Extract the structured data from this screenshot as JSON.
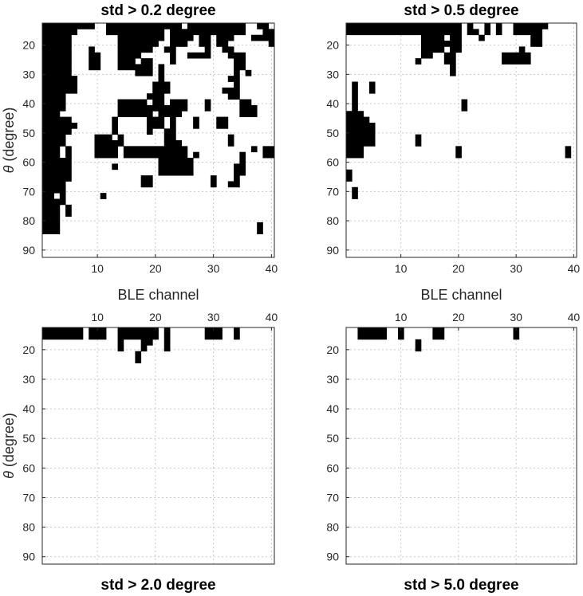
{
  "chart_data": [
    {
      "type": "heatmap",
      "title": "std > 0.2 degree",
      "xlabel": "BLE channel",
      "ylabel": "θ (degree)",
      "xticks": [
        "10",
        "20",
        "30",
        "40"
      ],
      "yticks": [
        "20",
        "30",
        "40",
        "50",
        "60",
        "70",
        "80",
        "90"
      ],
      "xlim": [
        0.5,
        40.5
      ],
      "ylim": [
        12.5,
        92.5
      ],
      "title_position": "top",
      "xtick_position": "bottom",
      "grid": true,
      "colors": {
        "flagged": "#000000",
        "unflagged": "#ffffff"
      },
      "cells": [
        [
          1,
          13,
          9
        ],
        [
          12,
          13,
          24
        ],
        [
          26,
          13,
          35
        ],
        [
          38,
          13,
          39
        ],
        [
          1,
          15,
          6
        ],
        [
          12,
          15,
          21
        ],
        [
          23,
          15,
          35
        ],
        [
          39,
          15,
          40
        ],
        [
          1,
          17,
          5
        ],
        [
          14,
          17,
          21
        ],
        [
          23,
          17,
          26
        ],
        [
          28,
          17,
          29
        ],
        [
          31,
          17,
          33
        ],
        [
          37,
          17,
          40
        ],
        [
          1,
          19,
          5
        ],
        [
          14,
          19,
          20
        ],
        [
          23,
          19,
          25
        ],
        [
          28,
          19,
          29
        ],
        [
          31,
          19,
          32
        ],
        [
          40,
          19,
          40
        ],
        [
          1,
          21,
          5
        ],
        [
          9,
          21,
          9
        ],
        [
          14,
          21,
          16
        ],
        [
          17,
          21,
          19
        ],
        [
          22,
          21,
          23
        ],
        [
          29,
          21,
          29
        ],
        [
          32,
          21,
          33
        ],
        [
          1,
          23,
          5
        ],
        [
          9,
          23,
          10
        ],
        [
          14,
          23,
          17
        ],
        [
          23,
          23,
          23
        ],
        [
          26,
          23,
          28
        ],
        [
          29,
          23,
          29
        ],
        [
          33,
          23,
          35
        ],
        [
          1,
          25,
          5
        ],
        [
          9,
          25,
          10
        ],
        [
          14,
          25,
          16
        ],
        [
          18,
          25,
          19
        ],
        [
          23,
          25,
          23
        ],
        [
          34,
          25,
          35
        ],
        [
          1,
          27,
          5
        ],
        [
          9,
          27,
          10
        ],
        [
          14,
          27,
          17
        ],
        [
          18,
          27,
          19
        ],
        [
          21,
          27,
          21
        ],
        [
          34,
          27,
          35
        ],
        [
          1,
          29,
          5
        ],
        [
          17,
          29,
          19
        ],
        [
          21,
          29,
          21
        ],
        [
          34,
          29,
          34
        ],
        [
          36,
          29,
          36
        ],
        [
          1,
          31,
          5
        ],
        [
          6,
          31,
          6
        ],
        [
          21,
          31,
          21
        ],
        [
          33,
          31,
          34
        ],
        [
          1,
          33,
          5
        ],
        [
          6,
          33,
          6
        ],
        [
          20,
          33,
          22
        ],
        [
          34,
          33,
          34
        ],
        [
          1,
          35,
          5
        ],
        [
          6,
          35,
          6
        ],
        [
          20,
          35,
          22
        ],
        [
          32,
          35,
          34
        ],
        [
          1,
          37,
          4
        ],
        [
          19,
          37,
          21
        ],
        [
          33,
          37,
          34
        ],
        [
          1,
          39,
          4
        ],
        [
          14,
          39,
          18
        ],
        [
          20,
          39,
          21
        ],
        [
          23,
          39,
          25
        ],
        [
          29,
          39,
          29
        ],
        [
          35,
          39,
          36
        ],
        [
          1,
          41,
          4
        ],
        [
          14,
          41,
          19
        ],
        [
          20,
          41,
          25
        ],
        [
          29,
          41,
          29
        ],
        [
          35,
          41,
          37
        ],
        [
          1,
          43,
          3
        ],
        [
          14,
          43,
          19
        ],
        [
          21,
          43,
          24
        ],
        [
          35,
          43,
          37
        ],
        [
          1,
          45,
          5
        ],
        [
          13,
          45,
          13
        ],
        [
          19,
          45,
          21
        ],
        [
          23,
          45,
          23
        ],
        [
          27,
          45,
          27
        ],
        [
          31,
          45,
          32
        ],
        [
          1,
          47,
          6
        ],
        [
          13,
          47,
          13
        ],
        [
          19,
          47,
          21
        ],
        [
          23,
          47,
          23
        ],
        [
          27,
          47,
          27
        ],
        [
          31,
          47,
          32
        ],
        [
          1,
          49,
          5
        ],
        [
          13,
          49,
          13
        ],
        [
          19,
          49,
          19
        ],
        [
          22,
          49,
          23
        ],
        [
          1,
          51,
          4
        ],
        [
          10,
          51,
          10
        ],
        [
          11,
          51,
          12
        ],
        [
          14,
          51,
          14
        ],
        [
          22,
          51,
          23
        ],
        [
          33,
          51,
          33
        ],
        [
          1,
          53,
          4
        ],
        [
          10,
          53,
          13
        ],
        [
          14,
          53,
          14
        ],
        [
          22,
          53,
          24
        ],
        [
          33,
          53,
          33
        ],
        [
          1,
          55,
          3
        ],
        [
          5,
          55,
          5
        ],
        [
          10,
          55,
          13
        ],
        [
          15,
          55,
          25
        ],
        [
          37,
          55,
          37
        ],
        [
          39,
          55,
          40
        ],
        [
          1,
          57,
          3
        ],
        [
          5,
          57,
          5
        ],
        [
          10,
          57,
          13
        ],
        [
          15,
          57,
          25
        ],
        [
          27,
          57,
          27
        ],
        [
          35,
          57,
          35
        ],
        [
          39,
          57,
          40
        ],
        [
          1,
          59,
          5
        ],
        [
          21,
          59,
          26
        ],
        [
          35,
          59,
          35
        ],
        [
          1,
          61,
          5
        ],
        [
          13,
          61,
          13
        ],
        [
          21,
          61,
          26
        ],
        [
          34,
          61,
          35
        ],
        [
          1,
          63,
          5
        ],
        [
          21,
          63,
          26
        ],
        [
          34,
          63,
          35
        ],
        [
          1,
          65,
          5
        ],
        [
          18,
          65,
          19
        ],
        [
          30,
          65,
          30
        ],
        [
          34,
          65,
          34
        ],
        [
          1,
          67,
          4
        ],
        [
          18,
          67,
          19
        ],
        [
          30,
          67,
          30
        ],
        [
          33,
          67,
          34
        ],
        [
          1,
          69,
          3
        ],
        [
          4,
          69,
          4
        ],
        [
          1,
          71,
          2
        ],
        [
          4,
          71,
          4
        ],
        [
          11,
          71,
          11
        ],
        [
          1,
          73,
          3
        ],
        [
          4,
          73,
          4
        ],
        [
          1,
          75,
          3
        ],
        [
          5,
          75,
          5
        ],
        [
          1,
          77,
          3
        ],
        [
          5,
          77,
          5
        ],
        [
          1,
          79,
          3
        ],
        [
          1,
          81,
          3
        ],
        [
          38,
          81,
          38
        ],
        [
          1,
          83,
          3
        ],
        [
          38,
          83,
          38
        ]
      ]
    },
    {
      "type": "heatmap",
      "title": "std > 0.5 degree",
      "xlabel": "BLE channel",
      "ylabel": "",
      "xticks": [
        "10",
        "20",
        "30",
        "40"
      ],
      "yticks": [
        "20",
        "30",
        "40",
        "50",
        "60",
        "70",
        "80",
        "90"
      ],
      "xlim": [
        0.5,
        40.5
      ],
      "ylim": [
        12.5,
        92.5
      ],
      "title_position": "top",
      "xtick_position": "bottom",
      "grid": true,
      "colors": {
        "flagged": "#000000",
        "unflagged": "#ffffff"
      },
      "cells": [
        [
          1,
          13,
          20
        ],
        [
          22,
          13,
          22
        ],
        [
          25,
          13,
          25
        ],
        [
          27,
          13,
          27
        ],
        [
          30,
          13,
          35
        ],
        [
          1,
          15,
          20
        ],
        [
          22,
          15,
          23
        ],
        [
          25,
          15,
          25
        ],
        [
          27,
          15,
          27
        ],
        [
          30,
          15,
          34
        ],
        [
          14,
          17,
          17
        ],
        [
          19,
          17,
          20
        ],
        [
          24,
          17,
          24
        ],
        [
          33,
          17,
          34
        ],
        [
          14,
          19,
          20
        ],
        [
          33,
          19,
          34
        ],
        [
          14,
          21,
          17
        ],
        [
          19,
          21,
          20
        ],
        [
          31,
          21,
          31
        ],
        [
          14,
          23,
          15
        ],
        [
          18,
          23,
          19
        ],
        [
          28,
          23,
          30
        ],
        [
          31,
          23,
          32
        ],
        [
          13,
          25,
          13
        ],
        [
          18,
          25,
          19
        ],
        [
          28,
          25,
          30
        ],
        [
          31,
          25,
          32
        ],
        [
          19,
          27,
          19
        ],
        [
          19,
          29,
          19
        ],
        [
          2,
          33,
          2
        ],
        [
          5,
          33,
          5
        ],
        [
          2,
          35,
          2
        ],
        [
          5,
          35,
          5
        ],
        [
          2,
          37,
          2
        ],
        [
          2,
          39,
          2
        ],
        [
          21,
          39,
          21
        ],
        [
          2,
          41,
          2
        ],
        [
          21,
          41,
          21
        ],
        [
          1,
          43,
          3
        ],
        [
          1,
          45,
          3
        ],
        [
          4,
          45,
          4
        ],
        [
          1,
          47,
          3
        ],
        [
          4,
          47,
          5
        ],
        [
          1,
          49,
          5
        ],
        [
          1,
          51,
          5
        ],
        [
          13,
          51,
          13
        ],
        [
          1,
          53,
          5
        ],
        [
          13,
          53,
          13
        ],
        [
          1,
          55,
          3
        ],
        [
          20,
          55,
          20
        ],
        [
          39,
          55,
          39
        ],
        [
          1,
          57,
          3
        ],
        [
          20,
          57,
          20
        ],
        [
          39,
          57,
          39
        ],
        [
          1,
          63,
          1
        ],
        [
          1,
          65,
          1
        ],
        [
          2,
          69,
          2
        ],
        [
          2,
          71,
          2
        ]
      ]
    },
    {
      "type": "heatmap",
      "title": "std > 2.0 degree",
      "xlabel": "",
      "ylabel": "θ (degree)",
      "xticks": [
        "10",
        "20",
        "30",
        "40"
      ],
      "yticks": [
        "20",
        "30",
        "40",
        "50",
        "60",
        "70",
        "80",
        "90"
      ],
      "xlim": [
        0.5,
        40.5
      ],
      "ylim": [
        12.5,
        92.5
      ],
      "title_position": "bottom",
      "xtick_position": "top",
      "grid": true,
      "colors": {
        "flagged": "#000000",
        "unflagged": "#ffffff"
      },
      "cells": [
        [
          1,
          13,
          7
        ],
        [
          9,
          13,
          11
        ],
        [
          14,
          13,
          20
        ],
        [
          22,
          13,
          22
        ],
        [
          29,
          13,
          31
        ],
        [
          34,
          13,
          34
        ],
        [
          1,
          15,
          7
        ],
        [
          9,
          15,
          11
        ],
        [
          14,
          15,
          20
        ],
        [
          22,
          15,
          22
        ],
        [
          29,
          15,
          31
        ],
        [
          34,
          15,
          34
        ],
        [
          14,
          17,
          14
        ],
        [
          18,
          17,
          19
        ],
        [
          22,
          17,
          22
        ],
        [
          14,
          19,
          14
        ],
        [
          18,
          19,
          18
        ],
        [
          22,
          19,
          22
        ],
        [
          17,
          21,
          17
        ],
        [
          17,
          23,
          17
        ]
      ]
    },
    {
      "type": "heatmap",
      "title": "std > 5.0 degree",
      "xlabel": "",
      "ylabel": "",
      "xticks": [
        "10",
        "20",
        "30",
        "40"
      ],
      "yticks": [
        "20",
        "30",
        "40",
        "50",
        "60",
        "70",
        "80",
        "90"
      ],
      "xlim": [
        0.5,
        40.5
      ],
      "ylim": [
        12.5,
        92.5
      ],
      "title_position": "bottom",
      "xtick_position": "top",
      "grid": true,
      "colors": {
        "flagged": "#000000",
        "unflagged": "#ffffff"
      },
      "cells": [
        [
          3,
          13,
          7
        ],
        [
          10,
          13,
          10
        ],
        [
          16,
          13,
          17
        ],
        [
          30,
          13,
          30
        ],
        [
          3,
          15,
          7
        ],
        [
          10,
          15,
          10
        ],
        [
          16,
          15,
          17
        ],
        [
          30,
          15,
          30
        ],
        [
          13,
          17,
          13
        ],
        [
          13,
          19,
          13
        ]
      ]
    }
  ]
}
